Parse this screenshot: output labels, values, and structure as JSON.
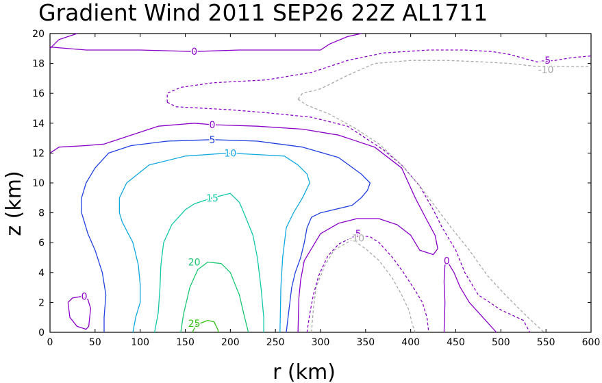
{
  "chart_data": {
    "type": "contour",
    "title": "Gradient Wind 2011 SEP26 22Z  AL1711",
    "xlabel": "r (km)",
    "ylabel": "z (km)",
    "xlim": [
      0,
      600
    ],
    "ylim": [
      0,
      20
    ],
    "xticks": [
      "0",
      "50",
      "100",
      "150",
      "200",
      "250",
      "300",
      "350",
      "400",
      "450",
      "500",
      "550",
      "600"
    ],
    "yticks": [
      "0",
      "2",
      "4",
      "6",
      "8",
      "10",
      "12",
      "14",
      "16",
      "18",
      "20"
    ],
    "contours": [
      {
        "level": 0,
        "label": "0",
        "color": "#8a00c8",
        "dashed": false,
        "points": [
          [
            0,
            19
          ],
          [
            10,
            19.6
          ],
          [
            30,
            20
          ]
        ],
        "label_at": null
      },
      {
        "level": 0,
        "label": "0",
        "color": "#8a00c8",
        "dashed": false,
        "points": [
          [
            0,
            19.1
          ],
          [
            40,
            18.9
          ],
          [
            100,
            18.9
          ],
          [
            160,
            18.8
          ],
          [
            210,
            18.9
          ],
          [
            250,
            18.9
          ],
          [
            280,
            18.9
          ],
          [
            300,
            18.9
          ],
          [
            310,
            19.3
          ],
          [
            330,
            19.8
          ],
          [
            345,
            20
          ]
        ],
        "label_at": [
          160,
          18.8
        ]
      },
      {
        "level": 0,
        "label": "0",
        "color": "#8a00c8",
        "dashed": false,
        "points": [
          [
            20,
            2
          ],
          [
            25,
            2.3
          ],
          [
            35,
            2.4
          ],
          [
            42,
            2.2
          ],
          [
            45,
            1.6
          ],
          [
            43,
            0.4
          ],
          [
            40,
            0.2
          ],
          [
            30,
            0.4
          ],
          [
            22,
            1
          ],
          [
            20,
            2
          ]
        ],
        "label_at": [
          38,
          2.4
        ]
      },
      {
        "level": 0,
        "label": "0",
        "color": "#8a00c8",
        "dashed": false,
        "points": [
          [
            0,
            12
          ],
          [
            10,
            12.4
          ],
          [
            40,
            12.5
          ],
          [
            60,
            12.6
          ],
          [
            90,
            13.2
          ],
          [
            120,
            13.8
          ],
          [
            160,
            14
          ],
          [
            180,
            13.9
          ],
          [
            230,
            13.8
          ],
          [
            280,
            13.6
          ],
          [
            320,
            13.2
          ],
          [
            360,
            12.4
          ],
          [
            390,
            11
          ],
          [
            405,
            9
          ],
          [
            418,
            7.5
          ],
          [
            427,
            6.5
          ],
          [
            430,
            5.6
          ],
          [
            425,
            5.2
          ],
          [
            410,
            5.5
          ],
          [
            400,
            6.5
          ],
          [
            385,
            7.2
          ],
          [
            365,
            7.6
          ],
          [
            340,
            7.6
          ],
          [
            320,
            7.3
          ],
          [
            300,
            6.6
          ],
          [
            290,
            5.6
          ],
          [
            282,
            4.8
          ],
          [
            278,
            3.5
          ],
          [
            276,
            2.3
          ],
          [
            275,
            0
          ]
        ],
        "label_at": [
          180,
          13.9
        ]
      },
      {
        "level": 0,
        "label": "0",
        "color": "#8a00c8",
        "dashed": false,
        "points": [
          [
            437,
            0
          ],
          [
            438,
            2
          ],
          [
            437,
            3.4
          ],
          [
            438,
            4.5
          ],
          [
            442,
            4.6
          ],
          [
            448,
            4
          ],
          [
            455,
            3
          ],
          [
            465,
            2
          ],
          [
            480,
            1
          ],
          [
            495,
            0
          ]
        ],
        "label_at": [
          440,
          4.8
        ]
      },
      {
        "level": 5,
        "label": "5",
        "color": "#2040e0",
        "dashed": false,
        "points": [
          [
            60,
            0
          ],
          [
            60,
            1
          ],
          [
            62,
            2.5
          ],
          [
            58,
            4
          ],
          [
            50,
            5.5
          ],
          [
            42,
            6.6
          ],
          [
            35,
            8
          ],
          [
            35,
            9
          ],
          [
            40,
            10
          ],
          [
            50,
            11
          ],
          [
            65,
            12
          ],
          [
            90,
            12.5
          ],
          [
            130,
            12.8
          ],
          [
            180,
            12.9
          ],
          [
            230,
            12.8
          ],
          [
            280,
            12.4
          ],
          [
            320,
            11.7
          ],
          [
            345,
            10.6
          ],
          [
            355,
            10
          ],
          [
            352,
            9.5
          ],
          [
            345,
            9
          ],
          [
            335,
            8.5
          ],
          [
            300,
            8
          ],
          [
            290,
            7.7
          ],
          [
            285,
            7
          ],
          [
            282,
            6
          ],
          [
            278,
            5
          ],
          [
            272,
            4
          ],
          [
            268,
            3
          ],
          [
            265,
            1.5
          ],
          [
            262,
            0
          ]
        ],
        "label_at": [
          180,
          12.9
        ]
      },
      {
        "level": 10,
        "label": "10",
        "color": "#10a8e0",
        "dashed": false,
        "points": [
          [
            92,
            0
          ],
          [
            95,
            1
          ],
          [
            100,
            2
          ],
          [
            100,
            3.2
          ],
          [
            98,
            4.5
          ],
          [
            92,
            6
          ],
          [
            80,
            7.4
          ],
          [
            77,
            8
          ],
          [
            77,
            9
          ],
          [
            85,
            10
          ],
          [
            110,
            11.2
          ],
          [
            150,
            11.8
          ],
          [
            198,
            12
          ],
          [
            230,
            11.9
          ],
          [
            260,
            11.8
          ],
          [
            275,
            11.2
          ],
          [
            285,
            10.6
          ],
          [
            288,
            10
          ],
          [
            280,
            9
          ],
          [
            270,
            8
          ],
          [
            262,
            7
          ],
          [
            258,
            5
          ],
          [
            256,
            3
          ],
          [
            255,
            0
          ]
        ],
        "label_at": [
          200,
          12
        ]
      },
      {
        "level": 15,
        "label": "15",
        "color": "#10c8a8",
        "dashed": false,
        "points": [
          [
            116,
            0
          ],
          [
            120,
            1.3
          ],
          [
            122,
            3
          ],
          [
            123,
            4.5
          ],
          [
            126,
            6
          ],
          [
            135,
            7.2
          ],
          [
            150,
            8.2
          ],
          [
            160,
            8.6
          ],
          [
            180,
            9
          ],
          [
            200,
            9.3
          ],
          [
            210,
            8.7
          ],
          [
            215,
            8
          ],
          [
            225,
            6.5
          ],
          [
            230,
            5
          ],
          [
            234,
            3
          ],
          [
            237,
            1
          ],
          [
            237,
            0
          ]
        ],
        "label_at": [
          180,
          9
        ]
      },
      {
        "level": 20,
        "label": "20",
        "color": "#18c870",
        "dashed": false,
        "points": [
          [
            145,
            0
          ],
          [
            148,
            1.2
          ],
          [
            155,
            3
          ],
          [
            164,
            4.2
          ],
          [
            175,
            4.7
          ],
          [
            190,
            4.6
          ],
          [
            200,
            4
          ],
          [
            210,
            2.5
          ],
          [
            215,
            1.2
          ],
          [
            220,
            0
          ]
        ],
        "label_at": [
          160,
          4.7
        ]
      },
      {
        "level": 25,
        "label": "25",
        "color": "#30c010",
        "dashed": false,
        "points": [
          [
            158,
            0
          ],
          [
            162,
            0.5
          ],
          [
            175,
            0.8
          ],
          [
            182,
            0.7
          ],
          [
            186,
            0.2
          ],
          [
            187,
            0
          ]
        ],
        "label_at": [
          160,
          0.6
        ]
      },
      {
        "level": -5,
        "label": "-5",
        "color": "#8a00c8",
        "dashed": true,
        "points": [
          [
            285,
            0
          ],
          [
            288,
            1.2
          ],
          [
            292,
            2.5
          ],
          [
            298,
            3.8
          ],
          [
            308,
            5.1
          ],
          [
            320,
            5.9
          ],
          [
            340,
            6.5
          ],
          [
            355,
            6.4
          ],
          [
            365,
            6
          ],
          [
            380,
            5
          ],
          [
            392,
            4
          ],
          [
            405,
            2.8
          ],
          [
            413,
            2
          ],
          [
            418,
            1
          ],
          [
            420,
            0
          ]
        ],
        "label_at": [
          340,
          6.6
        ]
      },
      {
        "level": -5,
        "label": "-5",
        "color": "#8a00c8",
        "dashed": true,
        "points": [
          [
            130,
            15.4
          ],
          [
            130,
            16
          ],
          [
            145,
            16.4
          ],
          [
            180,
            16.7
          ],
          [
            240,
            16.9
          ],
          [
            290,
            17.4
          ],
          [
            330,
            18.2
          ],
          [
            370,
            18.7
          ],
          [
            420,
            18.9
          ],
          [
            460,
            18.9
          ],
          [
            490,
            18.8
          ],
          [
            510,
            18.6
          ],
          [
            540,
            18.1
          ],
          [
            560,
            18.2
          ],
          [
            580,
            18.4
          ],
          [
            600,
            18.5
          ]
        ],
        "label_at": [
          550,
          18.2
        ]
      },
      {
        "level": -5,
        "label": "-5",
        "color": "#8a00c8",
        "dashed": true,
        "points": [
          [
            130,
            15.4
          ],
          [
            140,
            15.1
          ],
          [
            200,
            14.9
          ],
          [
            240,
            14.7
          ],
          [
            290,
            14.4
          ],
          [
            330,
            13.8
          ],
          [
            350,
            13
          ],
          [
            370,
            12.2
          ],
          [
            390,
            11.2
          ],
          [
            410,
            9.8
          ],
          [
            425,
            8.2
          ],
          [
            435,
            7
          ],
          [
            450,
            5.5
          ],
          [
            460,
            4
          ],
          [
            475,
            2.5
          ],
          [
            500,
            1.5
          ],
          [
            525,
            0.8
          ],
          [
            532,
            0
          ]
        ],
        "label_at": null
      },
      {
        "level": -10,
        "label": "-10",
        "color": "#a8a8a8",
        "dashed": true,
        "points": [
          [
            290,
            0
          ],
          [
            292,
            1.5
          ],
          [
            295,
            3
          ],
          [
            305,
            4.5
          ],
          [
            315,
            5.5
          ],
          [
            335,
            6.2
          ],
          [
            350,
            5.6
          ],
          [
            365,
            4.8
          ],
          [
            380,
            3.6
          ],
          [
            390,
            2.5
          ],
          [
            398,
            1.5
          ],
          [
            402,
            0.5
          ],
          [
            405,
            0
          ]
        ],
        "label_at": [
          340,
          6.3
        ]
      },
      {
        "level": -10,
        "label": "-10",
        "color": "#a8a8a8",
        "dashed": true,
        "points": [
          [
            275,
            15.6
          ],
          [
            280,
            16
          ],
          [
            300,
            16.3
          ],
          [
            330,
            17.2
          ],
          [
            360,
            18
          ],
          [
            400,
            18.2
          ],
          [
            440,
            18.2
          ],
          [
            480,
            18.1
          ],
          [
            510,
            18
          ],
          [
            540,
            17.8
          ],
          [
            560,
            17.8
          ],
          [
            580,
            17.8
          ],
          [
            600,
            17.8
          ]
        ],
        "label_at": [
          550,
          17.6
        ]
      },
      {
        "level": -10,
        "label": "-10",
        "color": "#a8a8a8",
        "dashed": true,
        "points": [
          [
            275,
            15.6
          ],
          [
            285,
            15.2
          ],
          [
            310,
            14.6
          ],
          [
            340,
            13.6
          ],
          [
            365,
            12.6
          ],
          [
            390,
            11.2
          ],
          [
            410,
            9.8
          ],
          [
            430,
            8.2
          ],
          [
            445,
            7
          ],
          [
            465,
            5.5
          ],
          [
            485,
            3.8
          ],
          [
            505,
            2.5
          ],
          [
            530,
            1
          ],
          [
            548,
            0
          ]
        ],
        "label_at": null
      }
    ]
  }
}
